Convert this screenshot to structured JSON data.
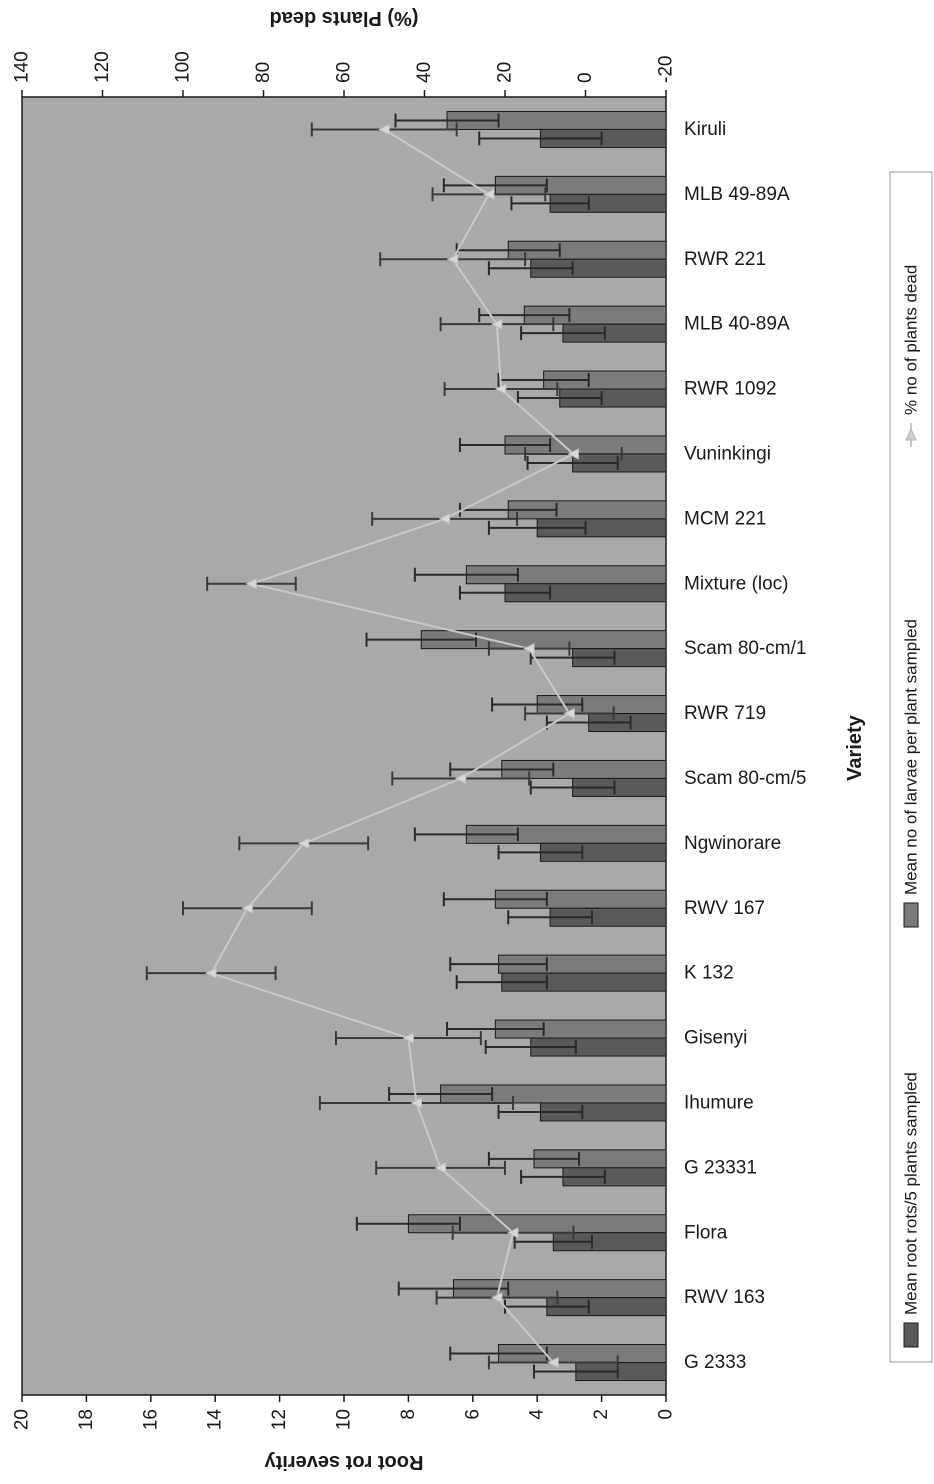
{
  "chart_data": {
    "type": "bar",
    "orientation": "rotated-90",
    "x_label": "Variety",
    "y_label": "Root rot severity",
    "y2_label": "(%) Plants dead",
    "ylim": [
      0,
      20
    ],
    "y_ticks": [
      0,
      2,
      4,
      6,
      8,
      10,
      12,
      14,
      16,
      18,
      20
    ],
    "y2lim": [
      -20,
      140
    ],
    "y2_ticks": [
      -20,
      0,
      20,
      40,
      60,
      80,
      100,
      120,
      140
    ],
    "grid": false,
    "legend_position": "right",
    "categories": [
      "Kiruli",
      "MLB 49-89A",
      "RWR 221",
      "MLB 40-89A",
      "RWR 1092",
      "Vuninkingi",
      "MCM 221",
      "Mixture (loc)",
      "Scam 80-cm/1",
      "RWR 719",
      "Scam 80-cm/5",
      "Ngwinorare",
      "RWV 167",
      "K 132",
      "Gisenyi",
      "Ihumure",
      "G 23331",
      "Flora",
      "RWV 163",
      "G 2333"
    ],
    "series": [
      {
        "name": "Mean root rots/5 plants sampled",
        "kind": "bar",
        "axis": "primary",
        "color": "#5a5a5a",
        "values": [
          3.9,
          3.6,
          4.2,
          3.2,
          3.3,
          2.9,
          4.0,
          5.0,
          2.9,
          2.4,
          2.9,
          3.9,
          3.6,
          5.1,
          4.2,
          3.9,
          3.2,
          3.5,
          3.7,
          2.8
        ],
        "errors": [
          1.9,
          1.2,
          1.3,
          1.3,
          1.3,
          1.4,
          1.5,
          1.4,
          1.3,
          1.3,
          1.3,
          1.3,
          1.3,
          1.4,
          1.4,
          1.3,
          1.3,
          1.2,
          1.3,
          1.3
        ]
      },
      {
        "name": "Mean no of larvae per plant sampled",
        "kind": "bar",
        "axis": "primary",
        "color": "#7b7b7b",
        "values": [
          6.8,
          5.3,
          4.9,
          4.4,
          3.8,
          5.0,
          4.9,
          6.2,
          7.6,
          4.0,
          5.1,
          6.2,
          5.3,
          5.2,
          5.3,
          7.0,
          4.1,
          8.0,
          6.6,
          5.2
        ],
        "errors": [
          1.6,
          1.6,
          1.6,
          1.4,
          1.4,
          1.4,
          1.5,
          1.6,
          1.7,
          1.4,
          1.6,
          1.6,
          1.6,
          1.5,
          1.5,
          1.6,
          1.4,
          1.6,
          1.7,
          1.5
        ]
      },
      {
        "name": "% no of plants dead",
        "kind": "line",
        "axis": "secondary",
        "color": "#c9c9c9",
        "values": [
          50,
          24,
          33,
          22,
          21,
          3,
          35,
          83,
          14,
          4,
          31,
          70,
          84,
          93,
          44,
          42,
          36,
          18,
          22,
          8
        ],
        "errors": [
          18,
          14,
          18,
          14,
          14,
          12,
          18,
          11,
          10,
          11,
          17,
          16,
          16,
          16,
          18,
          24,
          16,
          15,
          15,
          16
        ]
      }
    ]
  }
}
